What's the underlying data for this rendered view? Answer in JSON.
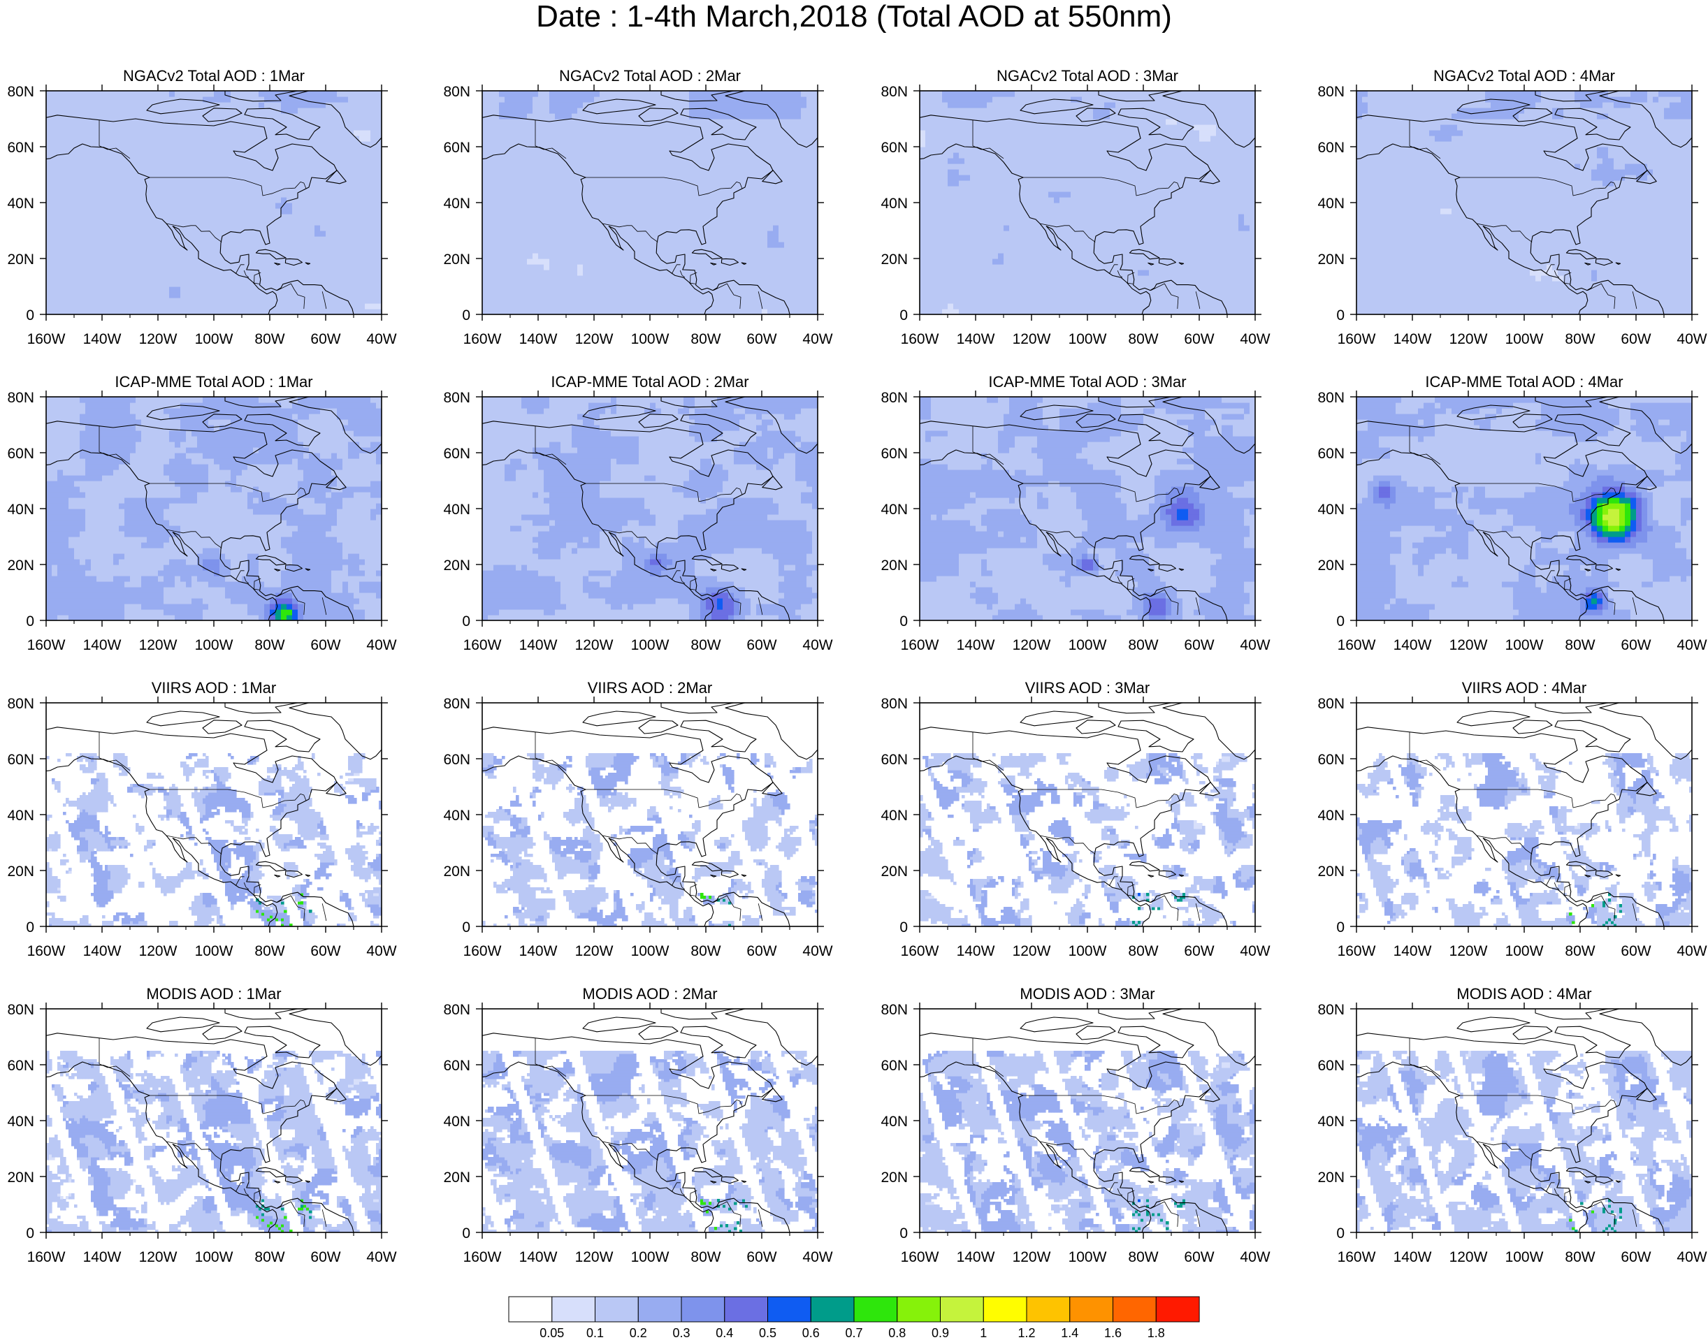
{
  "figure": {
    "title": "Date : 1-4th March,2018 (Total AOD at 550nm)"
  },
  "map": {
    "lat_labels": [
      "80N",
      "60N",
      "40N",
      "20N",
      "0"
    ],
    "lon_labels": [
      "160W",
      "140W",
      "120W",
      "100W",
      "80W",
      "60W",
      "40W"
    ],
    "lon_range": [
      -160,
      -40
    ],
    "lat_range": [
      0,
      80
    ]
  },
  "panels": [
    [
      {
        "title": "NGACv2 Total AOD : 1Mar",
        "source": "NGACv2",
        "date": "1Mar"
      },
      {
        "title": "NGACv2 Total AOD : 2Mar",
        "source": "NGACv2",
        "date": "2Mar"
      },
      {
        "title": "NGACv2 Total AOD : 3Mar",
        "source": "NGACv2",
        "date": "3Mar"
      },
      {
        "title": "NGACv2 Total AOD : 4Mar",
        "source": "NGACv2",
        "date": "4Mar"
      }
    ],
    [
      {
        "title": "ICAP-MME Total AOD : 1Mar",
        "source": "ICAP-MME",
        "date": "1Mar"
      },
      {
        "title": "ICAP-MME Total AOD : 2Mar",
        "source": "ICAP-MME",
        "date": "2Mar"
      },
      {
        "title": "ICAP-MME Total AOD : 3Mar",
        "source": "ICAP-MME",
        "date": "3Mar"
      },
      {
        "title": "ICAP-MME Total AOD : 4Mar",
        "source": "ICAP-MME",
        "date": "4Mar"
      }
    ],
    [
      {
        "title": "VIIRS AOD : 1Mar",
        "source": "VIIRS",
        "date": "1Mar"
      },
      {
        "title": "VIIRS AOD : 2Mar",
        "source": "VIIRS",
        "date": "2Mar"
      },
      {
        "title": "VIIRS AOD : 3Mar",
        "source": "VIIRS",
        "date": "3Mar"
      },
      {
        "title": "VIIRS AOD : 4Mar",
        "source": "VIIRS",
        "date": "4Mar"
      }
    ],
    [
      {
        "title": "MODIS AOD : 1Mar",
        "source": "MODIS",
        "date": "1Mar"
      },
      {
        "title": "MODIS AOD : 2Mar",
        "source": "MODIS",
        "date": "2Mar"
      },
      {
        "title": "MODIS AOD : 3Mar",
        "source": "MODIS",
        "date": "3Mar"
      },
      {
        "title": "MODIS AOD : 4Mar",
        "source": "MODIS",
        "date": "4Mar"
      }
    ]
  ],
  "colorbar": {
    "labels": [
      "0.05",
      "0.1",
      "0.2",
      "0.3",
      "0.4",
      "0.5",
      "0.6",
      "0.7",
      "0.8",
      "0.9",
      "1",
      "1.2",
      "1.4",
      "1.6",
      "1.8"
    ],
    "colors": [
      "#ffffff",
      "#d7dffb",
      "#bac8f5",
      "#98acf1",
      "#7e93ec",
      "#6b6fe3",
      "#0f5cf2",
      "#009c8a",
      "#2ee60c",
      "#86f20a",
      "#c5f33c",
      "#fffd00",
      "#fec300",
      "#fe9200",
      "#ff6600",
      "#ff1a00"
    ]
  }
}
